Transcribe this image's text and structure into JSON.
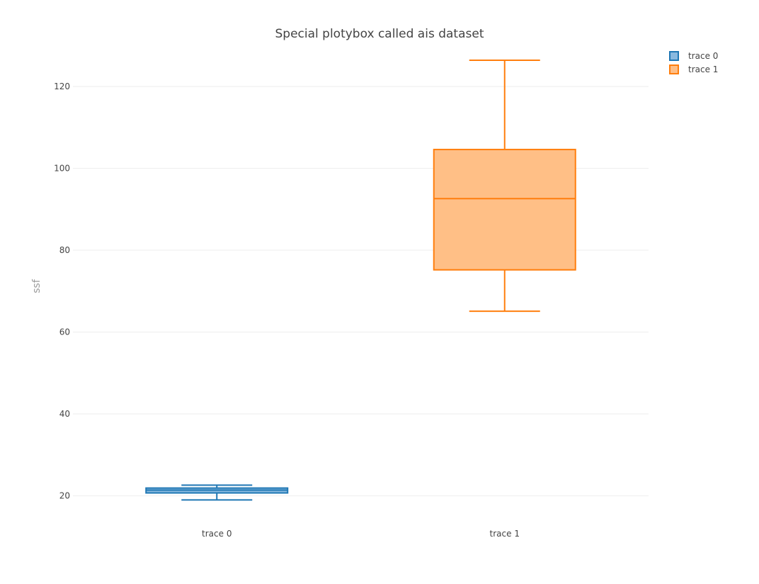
{
  "chart_data": {
    "type": "box",
    "title": "Special plotybox called ais dataset",
    "xlabel": "",
    "ylabel": "ssf",
    "ylim": [
      13,
      129
    ],
    "yticks": [
      20,
      40,
      60,
      80,
      100,
      120
    ],
    "grid": true,
    "legend_position": "top-right",
    "categories": [
      "trace 0",
      "trace 1"
    ],
    "series": [
      {
        "name": "trace 0",
        "color": "#1f77b4",
        "fill": "#89b9df",
        "min": 19.0,
        "q1": 20.7,
        "median": 21.4,
        "q3": 21.9,
        "max": 22.6
      },
      {
        "name": "trace 1",
        "color": "#ff7f0e",
        "fill": "#ffbf86",
        "min": 65.1,
        "q1": 75.2,
        "median": 92.6,
        "q3": 104.6,
        "max": 126.4
      }
    ]
  }
}
